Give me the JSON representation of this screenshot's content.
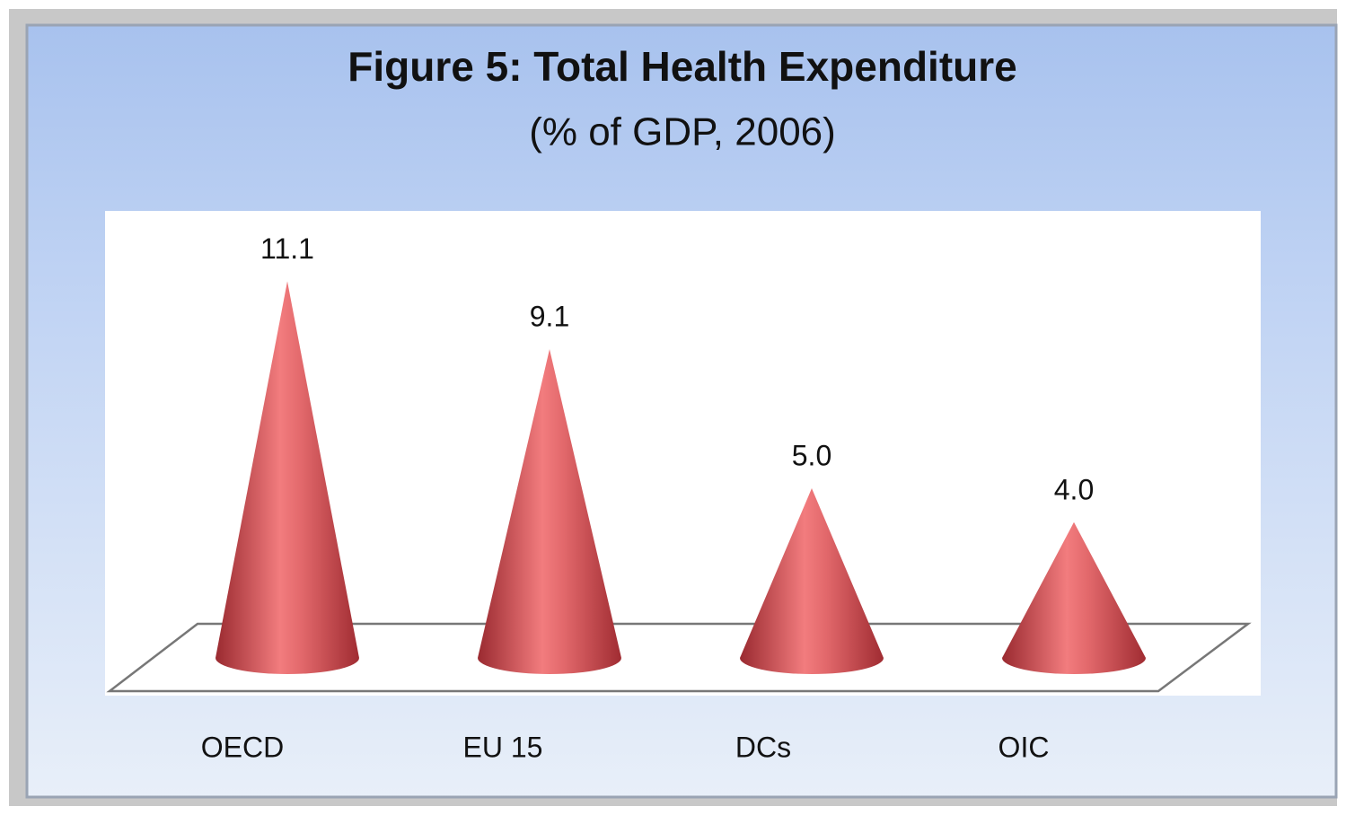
{
  "chart_data": {
    "type": "cone",
    "title": "Figure 5: Total Health Expenditure",
    "subtitle": "(% of GDP, 2006)",
    "categories": [
      "OECD",
      "EU 15",
      "DCs",
      "OIC"
    ],
    "values": [
      11.1,
      9.1,
      5.0,
      4.0
    ],
    "value_labels": [
      "11.1",
      "9.1",
      "5.0",
      "4.0"
    ],
    "color": "#c8464a"
  }
}
